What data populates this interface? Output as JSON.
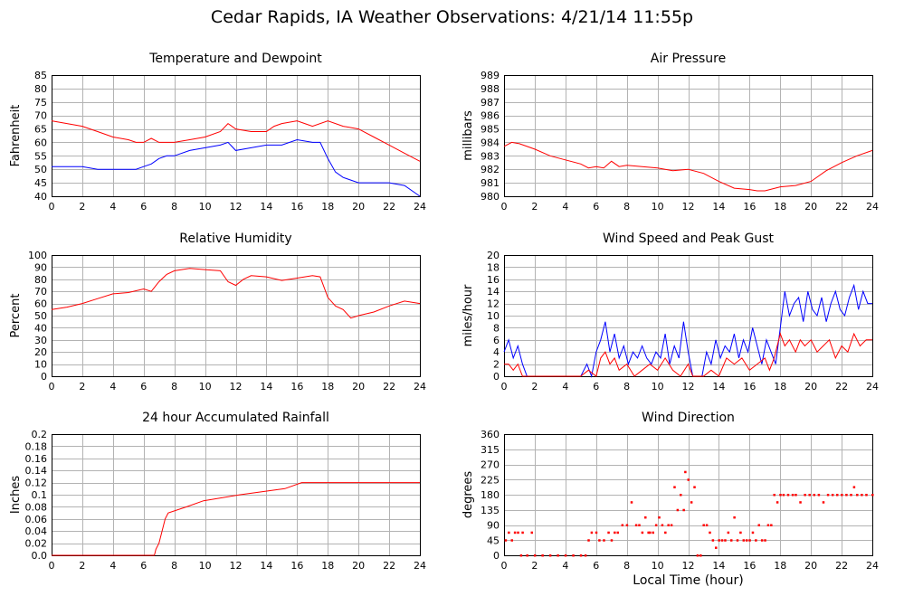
{
  "title": "Cedar Rapids, IA Weather Observations: 4/21/14 11:55p",
  "xlabel": "Local Time (hour)",
  "colors": {
    "red": "#ff0000",
    "blue": "#0000ff",
    "grid": "#b3b3b3"
  },
  "chart_data": [
    {
      "type": "line",
      "title": "Temperature and Dewpoint",
      "ylabel": "Fahrenheit",
      "xlim": [
        0,
        24
      ],
      "ylim": [
        40,
        85
      ],
      "xticks": [
        0,
        2,
        4,
        6,
        8,
        10,
        12,
        14,
        16,
        18,
        20,
        22,
        24
      ],
      "yticks": [
        40,
        45,
        50,
        55,
        60,
        65,
        70,
        75,
        80,
        85
      ],
      "grid": true,
      "series": [
        {
          "color": "#ff0000",
          "x": [
            0,
            1,
            2,
            3,
            4,
            5,
            5.5,
            6,
            6.5,
            7,
            8,
            9,
            10,
            11,
            11.5,
            12,
            13,
            14,
            14.5,
            15,
            16,
            16.5,
            17,
            18,
            19,
            20,
            21,
            22,
            23,
            24
          ],
          "y": [
            68,
            67,
            66,
            64,
            62,
            61,
            60,
            60,
            61.5,
            60,
            60,
            61,
            62,
            64,
            67,
            65,
            64,
            64,
            66,
            67,
            68,
            67,
            66,
            68,
            66,
            65,
            62,
            59,
            56,
            53
          ]
        },
        {
          "color": "#0000ff",
          "x": [
            0,
            1,
            2,
            3,
            4,
            5,
            5.5,
            6,
            6.5,
            7,
            7.5,
            8,
            9,
            10,
            11,
            11.5,
            12,
            13,
            14,
            15,
            16,
            17,
            17.5,
            18,
            18.5,
            19,
            20,
            21,
            22,
            23,
            24
          ],
          "y": [
            51,
            51,
            51,
            50,
            50,
            50,
            50,
            51,
            52,
            54,
            55,
            55,
            57,
            58,
            59,
            60,
            57,
            58,
            59,
            59,
            61,
            60,
            60,
            54,
            49,
            47,
            45,
            45,
            45,
            44,
            40
          ]
        }
      ]
    },
    {
      "type": "line",
      "title": "Air Pressure",
      "ylabel": "millibars",
      "xlim": [
        0,
        24
      ],
      "ylim": [
        980,
        989
      ],
      "xticks": [
        0,
        2,
        4,
        6,
        8,
        10,
        12,
        14,
        16,
        18,
        20,
        22,
        24
      ],
      "yticks": [
        980,
        981,
        982,
        983,
        984,
        985,
        986,
        987,
        988,
        989
      ],
      "grid": true,
      "series": [
        {
          "color": "#ff0000",
          "x": [
            0,
            0.5,
            1,
            2,
            3,
            4,
            5,
            5.5,
            6,
            6.5,
            7,
            7.5,
            8,
            9,
            10,
            11,
            12,
            13,
            14,
            15,
            16,
            16.5,
            17,
            18,
            19,
            20,
            21,
            22,
            23,
            24
          ],
          "y": [
            983.7,
            984.0,
            983.9,
            983.5,
            983.0,
            982.7,
            982.4,
            982.1,
            982.2,
            982.1,
            982.6,
            982.2,
            982.3,
            982.2,
            982.1,
            981.9,
            982.0,
            981.7,
            981.1,
            980.6,
            980.5,
            980.4,
            980.4,
            980.7,
            980.8,
            981.1,
            981.9,
            982.5,
            983.0,
            983.4
          ]
        }
      ]
    },
    {
      "type": "line",
      "title": "Relative Humidity",
      "ylabel": "Percent",
      "xlim": [
        0,
        24
      ],
      "ylim": [
        0,
        100
      ],
      "xticks": [
        0,
        2,
        4,
        6,
        8,
        10,
        12,
        14,
        16,
        18,
        20,
        22,
        24
      ],
      "yticks": [
        0,
        10,
        20,
        30,
        40,
        50,
        60,
        70,
        80,
        90,
        100
      ],
      "grid": true,
      "series": [
        {
          "color": "#ff0000",
          "x": [
            0,
            1,
            2,
            3,
            4,
            5,
            6,
            6.5,
            7,
            7.5,
            8,
            9,
            10,
            11,
            11.5,
            12,
            12.5,
            13,
            14,
            15,
            16,
            17,
            17.5,
            18,
            18.5,
            19,
            19.5,
            20,
            21,
            22,
            23,
            24
          ],
          "y": [
            55,
            57,
            60,
            64,
            68,
            69,
            72,
            70,
            78,
            84,
            87,
            89,
            88,
            87,
            78,
            75,
            80,
            83,
            82,
            79,
            81,
            83,
            82,
            65,
            58,
            55,
            48,
            50,
            53,
            58,
            62,
            60
          ]
        }
      ]
    },
    {
      "type": "line",
      "title": "Wind Speed and Peak Gust",
      "ylabel": "miles/hour",
      "xlim": [
        0,
        24
      ],
      "ylim": [
        0,
        20
      ],
      "xticks": [
        0,
        2,
        4,
        6,
        8,
        10,
        12,
        14,
        16,
        18,
        20,
        22,
        24
      ],
      "yticks": [
        0,
        2,
        4,
        6,
        8,
        10,
        12,
        14,
        16,
        18,
        20
      ],
      "grid": true,
      "series": [
        {
          "color": "#0000ff",
          "x": [
            0,
            0.3,
            0.6,
            0.9,
            1.2,
            1.5,
            1.8,
            2.1,
            3,
            4,
            5,
            5.4,
            5.7,
            6,
            6.3,
            6.6,
            6.9,
            7.2,
            7.5,
            7.8,
            8.1,
            8.4,
            8.7,
            9,
            9.3,
            9.6,
            9.9,
            10.2,
            10.5,
            10.8,
            11.1,
            11.4,
            11.7,
            12,
            12.3,
            12.6,
            12.9,
            13.2,
            13.5,
            13.8,
            14.1,
            14.4,
            14.7,
            15,
            15.3,
            15.6,
            15.9,
            16.2,
            16.5,
            16.8,
            17.1,
            17.4,
            17.7,
            18,
            18.3,
            18.6,
            18.9,
            19.2,
            19.5,
            19.8,
            20.1,
            20.4,
            20.7,
            21,
            21.3,
            21.6,
            21.9,
            22.2,
            22.5,
            22.8,
            23.1,
            23.4,
            23.7,
            24
          ],
          "y": [
            4,
            6,
            3,
            5,
            2,
            0,
            0,
            0,
            0,
            0,
            0,
            2,
            0,
            4,
            6,
            9,
            4,
            7,
            3,
            5,
            2,
            4,
            3,
            5,
            3,
            2,
            4,
            3,
            7,
            2,
            5,
            3,
            9,
            4,
            0,
            0,
            0,
            4,
            2,
            6,
            3,
            5,
            4,
            7,
            3,
            6,
            4,
            8,
            5,
            2,
            6,
            4,
            2,
            8,
            14,
            10,
            12,
            13,
            9,
            14,
            11,
            10,
            13,
            9,
            12,
            14,
            11,
            10,
            13,
            15,
            11,
            14,
            12,
            12
          ]
        },
        {
          "color": "#ff0000",
          "x": [
            0,
            0.3,
            0.6,
            0.9,
            1.2,
            1.5,
            2,
            3,
            4,
            5,
            5.5,
            6,
            6.3,
            6.6,
            6.9,
            7.2,
            7.5,
            8,
            8.5,
            9,
            9.5,
            10,
            10.5,
            11,
            11.5,
            12,
            12.3,
            13,
            13.5,
            14,
            14.5,
            15,
            15.5,
            16,
            16.5,
            17,
            17.3,
            17.6,
            18,
            18.3,
            18.6,
            19,
            19.3,
            19.6,
            20,
            20.4,
            20.8,
            21.2,
            21.6,
            22,
            22.4,
            22.8,
            23.2,
            23.6,
            24
          ],
          "y": [
            2,
            2,
            1,
            2,
            0,
            0,
            0,
            0,
            0,
            0,
            1,
            0,
            3,
            4,
            2,
            3,
            1,
            2,
            0,
            1,
            2,
            1,
            3,
            1,
            0,
            2,
            0,
            0,
            1,
            0,
            3,
            2,
            3,
            1,
            2,
            3,
            1,
            3,
            7,
            5,
            6,
            4,
            6,
            5,
            6,
            4,
            5,
            6,
            3,
            5,
            4,
            7,
            5,
            6,
            6
          ]
        }
      ]
    },
    {
      "type": "line",
      "title": "24 hour Accumulated Rainfall",
      "ylabel": "Inches",
      "xlim": [
        0,
        24
      ],
      "ylim": [
        0,
        0.2
      ],
      "xticks": [
        0,
        2,
        4,
        6,
        8,
        10,
        12,
        14,
        16,
        18,
        20,
        22,
        24
      ],
      "yticks": [
        "0.0",
        "0.02",
        "0.04",
        "0.06",
        "0.08",
        "0.1",
        "0.12",
        "0.14",
        "0.16",
        "0.18",
        "0.2"
      ],
      "grid": true,
      "series": [
        {
          "color": "#ff0000",
          "x": [
            0,
            6.7,
            6.8,
            7.0,
            7.2,
            7.4,
            7.6,
            8.8,
            9.9,
            12.3,
            15.2,
            16.3,
            24
          ],
          "y": [
            0,
            0,
            0.01,
            0.02,
            0.04,
            0.06,
            0.07,
            0.08,
            0.09,
            0.1,
            0.11,
            0.12,
            0.12
          ]
        }
      ]
    },
    {
      "type": "scatter",
      "title": "Wind Direction",
      "ylabel": "degrees",
      "xlim": [
        0,
        24
      ],
      "ylim": [
        0,
        360
      ],
      "xticks": [
        0,
        2,
        4,
        6,
        8,
        10,
        12,
        14,
        16,
        18,
        20,
        22,
        24
      ],
      "yticks": [
        0,
        45,
        90,
        135,
        180,
        225,
        270,
        315,
        360
      ],
      "grid": true,
      "series": [
        {
          "color": "#ff0000",
          "x": [
            0.1,
            0.3,
            0.5,
            0.7,
            0.9,
            1.1,
            1.2,
            1.5,
            1.8,
            2.0,
            2.5,
            3.0,
            3.5,
            4.0,
            4.5,
            5.0,
            5.3,
            5.5,
            5.7,
            6.0,
            6.2,
            6.5,
            6.8,
            7.0,
            7.2,
            7.4,
            7.7,
            8.0,
            8.3,
            8.6,
            8.8,
            9.0,
            9.2,
            9.4,
            9.5,
            9.7,
            9.9,
            10.1,
            10.3,
            10.5,
            10.7,
            10.9,
            11.1,
            11.3,
            11.5,
            11.7,
            11.8,
            12.0,
            12.2,
            12.4,
            12.6,
            12.8,
            13.0,
            13.2,
            13.4,
            13.6,
            13.8,
            14.0,
            14.2,
            14.4,
            14.6,
            14.8,
            15.0,
            15.2,
            15.4,
            15.6,
            15.8,
            16.0,
            16.2,
            16.4,
            16.6,
            16.8,
            17.0,
            17.2,
            17.4,
            17.6,
            17.8,
            18.0,
            18.2,
            18.5,
            18.8,
            19.0,
            19.3,
            19.6,
            19.9,
            20.2,
            20.5,
            20.8,
            21.1,
            21.4,
            21.7,
            22.0,
            22.3,
            22.6,
            22.8,
            23.0,
            23.3,
            23.6,
            24.0
          ],
          "y": [
            45,
            68,
            45,
            68,
            68,
            0,
            68,
            0,
            68,
            0,
            0,
            0,
            0,
            0,
            0,
            0,
            0,
            45,
            68,
            68,
            45,
            45,
            68,
            45,
            68,
            68,
            90,
            90,
            158,
            90,
            90,
            68,
            113,
            68,
            68,
            68,
            90,
            113,
            90,
            68,
            90,
            90,
            203,
            135,
            180,
            135,
            248,
            225,
            158,
            203,
            0,
            0,
            90,
            90,
            68,
            45,
            23,
            45,
            45,
            45,
            68,
            45,
            113,
            45,
            68,
            45,
            45,
            45,
            68,
            45,
            90,
            45,
            45,
            90,
            90,
            180,
            158,
            180,
            180,
            180,
            180,
            180,
            158,
            180,
            180,
            180,
            180,
            158,
            180,
            180,
            180,
            180,
            180,
            180,
            203,
            180,
            180,
            180,
            180
          ]
        }
      ]
    }
  ]
}
